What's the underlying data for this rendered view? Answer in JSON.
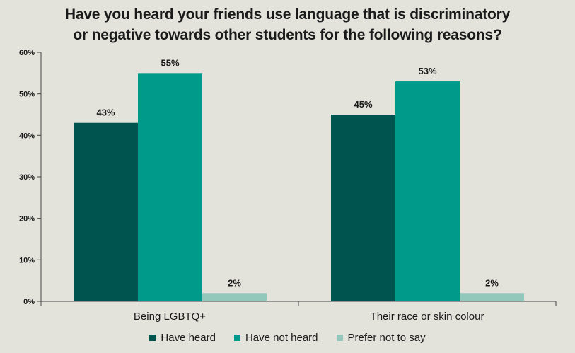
{
  "chart_data": {
    "type": "bar",
    "title_lines": [
      "Have you heard your friends use language that is discriminatory",
      "or negative towards other students for the following reasons?"
    ],
    "categories": [
      "Being LGBTQ+",
      "Their race or skin colour"
    ],
    "series": [
      {
        "name": "Have heard",
        "values": [
          43,
          45
        ],
        "labels": [
          "43%",
          "45%"
        ],
        "color": "#00544f"
      },
      {
        "name": "Have not heard",
        "values": [
          55,
          53
        ],
        "labels": [
          "55%",
          "53%"
        ],
        "color": "#009a8a"
      },
      {
        "name": "Prefer not to say",
        "values": [
          2,
          2
        ],
        "labels": [
          "2%",
          "2%"
        ],
        "color": "#92c7bc"
      }
    ],
    "y_ticks": [
      0,
      10,
      20,
      30,
      40,
      50,
      60
    ],
    "y_tick_labels": [
      "0%",
      "10%",
      "20%",
      "30%",
      "40%",
      "50%",
      "60%"
    ],
    "ylim": [
      0,
      60
    ],
    "grid": false,
    "legend_position": "bottom"
  }
}
